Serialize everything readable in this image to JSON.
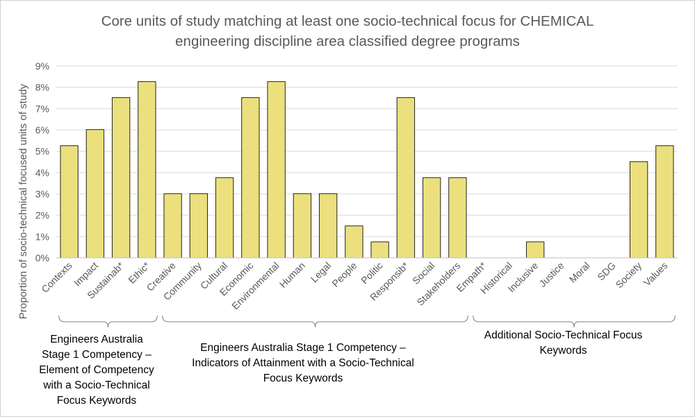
{
  "chart_data": {
    "type": "bar",
    "title_lines": [
      "Core units of study matching at least one socio-technical focus for CHEMICAL",
      "engineering discipline area classified degree programs"
    ],
    "xlabel": "",
    "ylabel": "Proportion of socio-technical focused units of study",
    "ylim": [
      0,
      9
    ],
    "y_ticks": [
      0,
      1,
      2,
      3,
      4,
      5,
      6,
      7,
      8,
      9
    ],
    "y_tick_labels": [
      "0%",
      "1%",
      "2%",
      "3%",
      "4%",
      "5%",
      "6%",
      "7%",
      "8%",
      "9%"
    ],
    "grid": true,
    "legend": "none",
    "bar_color": "#ebe07d",
    "bar_edge_color": "#222222",
    "categories": [
      "Contexts",
      "Impact",
      "Sustainab*",
      "Ethic*",
      "Creative",
      "Community",
      "Cultural",
      "Economic",
      "Environmental",
      "Human",
      "Legal",
      "People",
      "Politic",
      "Responsib*",
      "Social",
      "Stakeholders",
      "Empath*",
      "Historical",
      "Inclusive",
      "Justice",
      "Moral",
      "SDG",
      "Society",
      "Values"
    ],
    "values": [
      5.26,
      6.02,
      7.52,
      8.27,
      3.01,
      3.01,
      3.76,
      7.52,
      8.27,
      3.01,
      3.01,
      1.5,
      0.75,
      7.52,
      3.76,
      3.76,
      0,
      0,
      0.75,
      0,
      0,
      0,
      4.51,
      5.26
    ],
    "groups": [
      {
        "label": "Engineers Australia Stage 1 Competency – Element of Competency with a Socio-Technical Focus Keywords",
        "from": 0,
        "to": 3
      },
      {
        "label": "Engineers Australia Stage 1 Competency – Indicators of Attainment with a Socio-Technical Focus Keywords",
        "from": 4,
        "to": 15
      },
      {
        "label": "Additional Socio-Technical Focus Keywords",
        "from": 16,
        "to": 23
      }
    ]
  }
}
